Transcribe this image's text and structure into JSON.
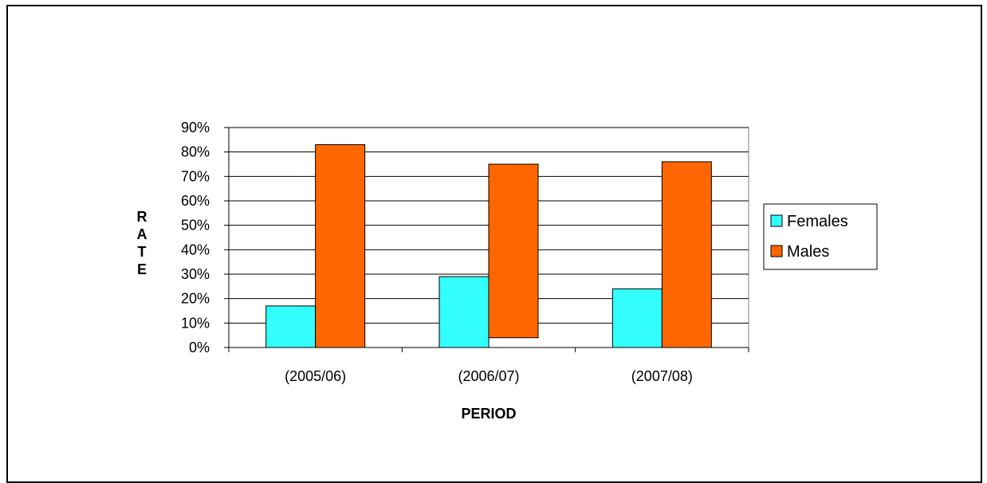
{
  "chart_data": {
    "type": "bar",
    "title": "",
    "xlabel": "PERIOD",
    "ylabel": "RATE",
    "categories": [
      "(2005/06)",
      "(2006/07)",
      "(2007/08)"
    ],
    "series": [
      {
        "name": "Females",
        "color": "#33FFFF",
        "values": [
          0.17,
          0.29,
          0.24
        ]
      },
      {
        "name": "Males",
        "color": "#FF6600",
        "values": [
          0.83,
          0.75,
          0.76
        ],
        "bases": [
          0,
          0.04,
          0
        ]
      }
    ],
    "ylim": [
      0,
      0.9
    ],
    "yticks": [
      0,
      0.1,
      0.2,
      0.3,
      0.4,
      0.5,
      0.6,
      0.7,
      0.8,
      0.9
    ],
    "ytick_labels": [
      "0%",
      "10%",
      "20%",
      "30%",
      "40%",
      "50%",
      "60%",
      "70%",
      "80%",
      "90%"
    ],
    "grid": true,
    "legend": "right"
  }
}
